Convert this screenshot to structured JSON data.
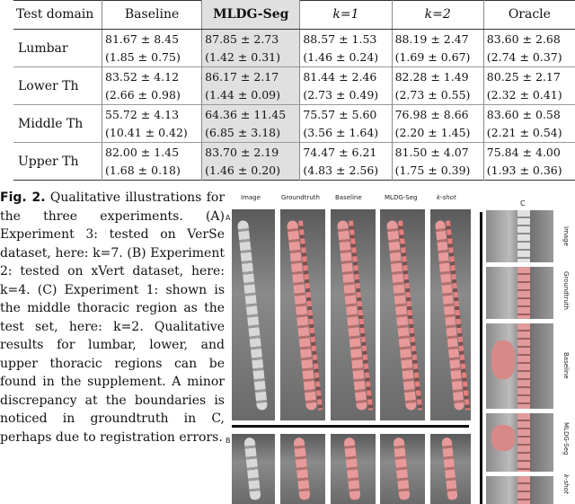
{
  "table": {
    "headers": [
      "Test domain",
      "Baseline",
      "MLDG-Seg",
      "k=1",
      "k=2",
      "Oracle"
    ],
    "rows": [
      {
        "domain": "Lumbar",
        "cells": [
          [
            "81.67 ± 8.45",
            "(1.85 ± 0.75)"
          ],
          [
            "87.85 ± 2.73",
            "(1.42 ± 0.31)"
          ],
          [
            "88.57 ± 1.53",
            "(1.46 ± 0.24)"
          ],
          [
            "88.19 ± 2.47",
            "(1.69 ± 0.67)"
          ],
          [
            "83.60 ± 2.68",
            "(2.74 ± 0.37)"
          ]
        ]
      },
      {
        "domain": "Lower Th",
        "cells": [
          [
            "83.52 ± 4.12",
            "(2.66 ± 0.98)"
          ],
          [
            "86.17 ± 2.17",
            "(1.44 ± 0.09)"
          ],
          [
            "81.44 ± 2.46",
            "(2.73 ± 0.49)"
          ],
          [
            "82.28 ± 1.49",
            "(2.73 ± 0.55)"
          ],
          [
            "80.25 ± 2.17",
            "(2.32 ± 0.41)"
          ]
        ]
      },
      {
        "domain": "Middle Th",
        "cells": [
          [
            "55.72 ± 4.13",
            "(10.41 ± 0.42)"
          ],
          [
            "64.36 ± 11.45",
            "(6.85 ± 3.18)"
          ],
          [
            "75.57 ± 5.60",
            "(3.56 ± 1.64)"
          ],
          [
            "76.98 ± 8.66",
            "(2.20 ± 1.45)"
          ],
          [
            "83.60 ± 0.58",
            "(2.21 ± 0.54)"
          ]
        ]
      },
      {
        "domain": "Upper Th",
        "cells": [
          [
            "82.00 ± 1.45",
            "(1.68 ± 0.18)"
          ],
          [
            "83.70 ± 2.19",
            "(1.46 ± 0.20)"
          ],
          [
            "74.47 ± 6.21",
            "(4.83 ± 2.56)"
          ],
          [
            "81.50 ± 4.07",
            "(1.75 ± 0.39)"
          ],
          [
            "75.84 ± 4.00",
            "(1.93 ± 0.36)"
          ]
        ]
      }
    ]
  },
  "caption": {
    "label": "Fig. 2.",
    "text": "Qualitative illustrations for the three experiments. (A) Experiment 3: tested on VerSe dataset, here: k=7. (B) Experiment 2: tested on xVert dataset, here: k=4. (C) Experiment 1: shown is the middle thoracic region as the test set, here: k=2. Qualitative results for lumbar, lower, and upper thoracic regions can be found in the supplement. A minor discrepancy at the boundaries is noticed in groundtruth in C, perhaps due to registration errors."
  },
  "figure": {
    "columns": [
      "Image",
      "Groundtruth",
      "Baseline",
      "MLDG-Seg",
      "k-shot"
    ],
    "panel_a": "A",
    "panel_b": "B",
    "panel_c": "C",
    "c_rows": [
      "Image",
      "Groundtruth",
      "Baseline",
      "MLDG-Seg",
      "k-shot"
    ]
  }
}
